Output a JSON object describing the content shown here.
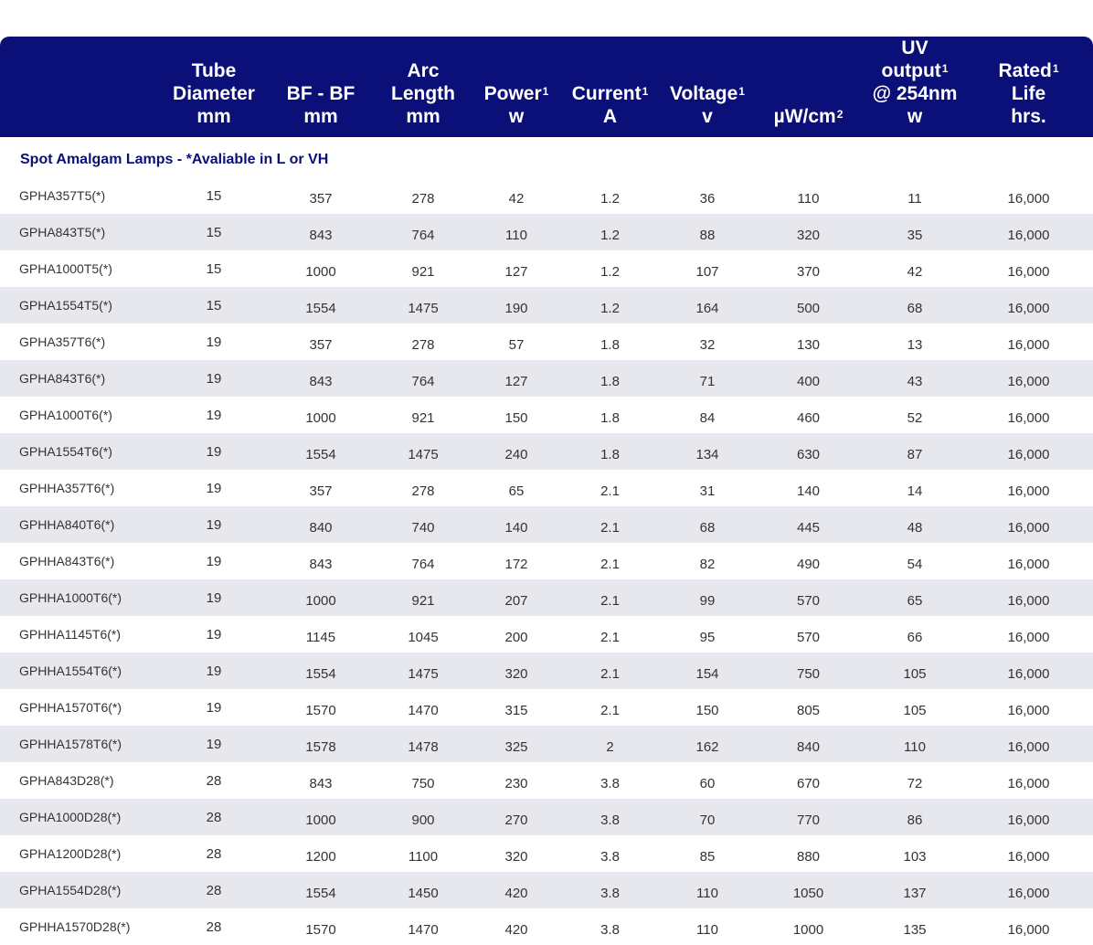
{
  "header": {
    "tube_diameter": [
      "Tube",
      "Diameter",
      "mm"
    ],
    "bf_bf": [
      "BF - BF",
      "mm"
    ],
    "arc_length": [
      "Arc",
      "Length",
      "mm"
    ],
    "power": {
      "label": "Power",
      "sup": "1",
      "unit": "w"
    },
    "current": {
      "label": "Current",
      "sup": "1",
      "unit": "A"
    },
    "voltage": {
      "label": "Voltage",
      "sup": "1",
      "unit": "v"
    },
    "irradiance": {
      "label": "µW/cm",
      "sup": "2"
    },
    "uv_output": {
      "label": "UV output",
      "sup": "1",
      "line2": "@ 254nm",
      "unit": "w"
    },
    "rated_life": {
      "label": "Rated",
      "sup": "1",
      "line2": "Life",
      "unit": "hrs."
    }
  },
  "section_title": "Spot Amalgam Lamps - *Avaliable in L or VH",
  "rows": [
    [
      "GPHA357T5(*)",
      "15",
      "357",
      "278",
      "42",
      "1.2",
      "36",
      "110",
      "11",
      "16,000"
    ],
    [
      "GPHA843T5(*)",
      "15",
      "843",
      "764",
      "110",
      "1.2",
      "88",
      "320",
      "35",
      "16,000"
    ],
    [
      "GPHA1000T5(*)",
      "15",
      "1000",
      "921",
      "127",
      "1.2",
      "107",
      "370",
      "42",
      "16,000"
    ],
    [
      "GPHA1554T5(*)",
      "15",
      "1554",
      "1475",
      "190",
      "1.2",
      "164",
      "500",
      "68",
      "16,000"
    ],
    [
      "GPHA357T6(*)",
      "19",
      "357",
      "278",
      "57",
      "1.8",
      "32",
      "130",
      "13",
      "16,000"
    ],
    [
      "GPHA843T6(*)",
      "19",
      "843",
      "764",
      "127",
      "1.8",
      "71",
      "400",
      "43",
      "16,000"
    ],
    [
      "GPHA1000T6(*)",
      "19",
      "1000",
      "921",
      "150",
      "1.8",
      "84",
      "460",
      "52",
      "16,000"
    ],
    [
      "GPHA1554T6(*)",
      "19",
      "1554",
      "1475",
      "240",
      "1.8",
      "134",
      "630",
      "87",
      "16,000"
    ],
    [
      "GPHHA357T6(*)",
      "19",
      "357",
      "278",
      "65",
      "2.1",
      "31",
      "140",
      "14",
      "16,000"
    ],
    [
      "GPHHA840T6(*)",
      "19",
      "840",
      "740",
      "140",
      "2.1",
      "68",
      "445",
      "48",
      "16,000"
    ],
    [
      "GPHHA843T6(*)",
      "19",
      "843",
      "764",
      "172",
      "2.1",
      "82",
      "490",
      "54",
      "16,000"
    ],
    [
      "GPHHA1000T6(*)",
      "19",
      "1000",
      "921",
      "207",
      "2.1",
      "99",
      "570",
      "65",
      "16,000"
    ],
    [
      "GPHHA1145T6(*)",
      "19",
      "1145",
      "1045",
      "200",
      "2.1",
      "95",
      "570",
      "66",
      "16,000"
    ],
    [
      "GPHHA1554T6(*)",
      "19",
      "1554",
      "1475",
      "320",
      "2.1",
      "154",
      "750",
      "105",
      "16,000"
    ],
    [
      "GPHHA1570T6(*)",
      "19",
      "1570",
      "1470",
      "315",
      "2.1",
      "150",
      "805",
      "105",
      "16,000"
    ],
    [
      "GPHHA1578T6(*)",
      "19",
      "1578",
      "1478",
      "325",
      "2",
      "162",
      "840",
      "110",
      "16,000"
    ],
    [
      "GPHA843D28(*)",
      "28",
      "843",
      "750",
      "230",
      "3.8",
      "60",
      "670",
      "72",
      "16,000"
    ],
    [
      "GPHA1000D28(*)",
      "28",
      "1000",
      "900",
      "270",
      "3.8",
      "70",
      "770",
      "86",
      "16,000"
    ],
    [
      "GPHA1200D28(*)",
      "28",
      "1200",
      "1100",
      "320",
      "3.8",
      "85",
      "880",
      "103",
      "16,000"
    ],
    [
      "GPHA1554D28(*)",
      "28",
      "1554",
      "1450",
      "420",
      "3.8",
      "110",
      "1050",
      "137",
      "16,000"
    ],
    [
      "GPHHA1570D28(*)",
      "28",
      "1570",
      "1470",
      "420",
      "3.8",
      "110",
      "1000",
      "135",
      "16,000"
    ]
  ],
  "colors": {
    "header_bg": "#0b0f78",
    "header_text": "#ffffff",
    "section_text": "#0b0f78",
    "stripe": "#e7e7ee"
  }
}
